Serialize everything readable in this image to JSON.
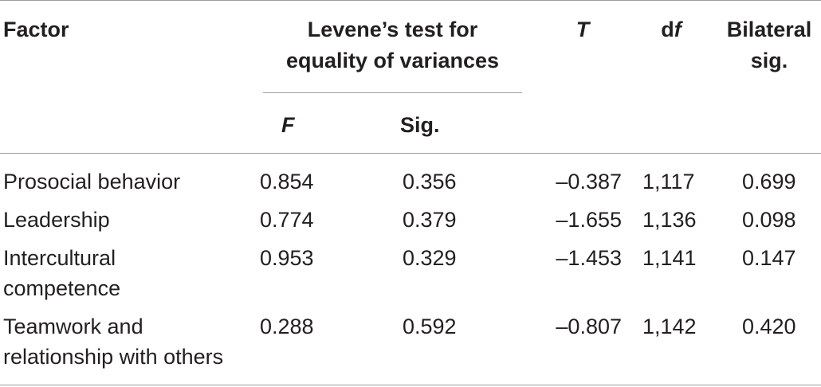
{
  "table": {
    "header": {
      "factor": "Factor",
      "levene_line1": "Levene’s test for",
      "levene_line2": "equality of variances",
      "f": "F",
      "sig": "Sig.",
      "t": "T",
      "df_d": "d",
      "df_f": "f",
      "bilateral_line1": "Bilateral",
      "bilateral_line2": "sig."
    },
    "rows": [
      {
        "factor_line1": "Prosocial behavior",
        "factor_line2": "",
        "f": "0.854",
        "sig": "0.356",
        "t": "–0.387",
        "df": "1,117",
        "bilateral": "0.699"
      },
      {
        "factor_line1": "Leadership",
        "factor_line2": "",
        "f": "0.774",
        "sig": "0.379",
        "t": "–1.655",
        "df": "1,136",
        "bilateral": "0.098"
      },
      {
        "factor_line1": "Intercultural",
        "factor_line2": "competence",
        "f": "0.953",
        "sig": "0.329",
        "t": "–1.453",
        "df": "1,141",
        "bilateral": "0.147"
      },
      {
        "factor_line1": "Teamwork and",
        "factor_line2": "relationship with others",
        "f": "0.288",
        "sig": "0.592",
        "t": "–0.807",
        "df": "1,142",
        "bilateral": "0.420"
      }
    ]
  }
}
